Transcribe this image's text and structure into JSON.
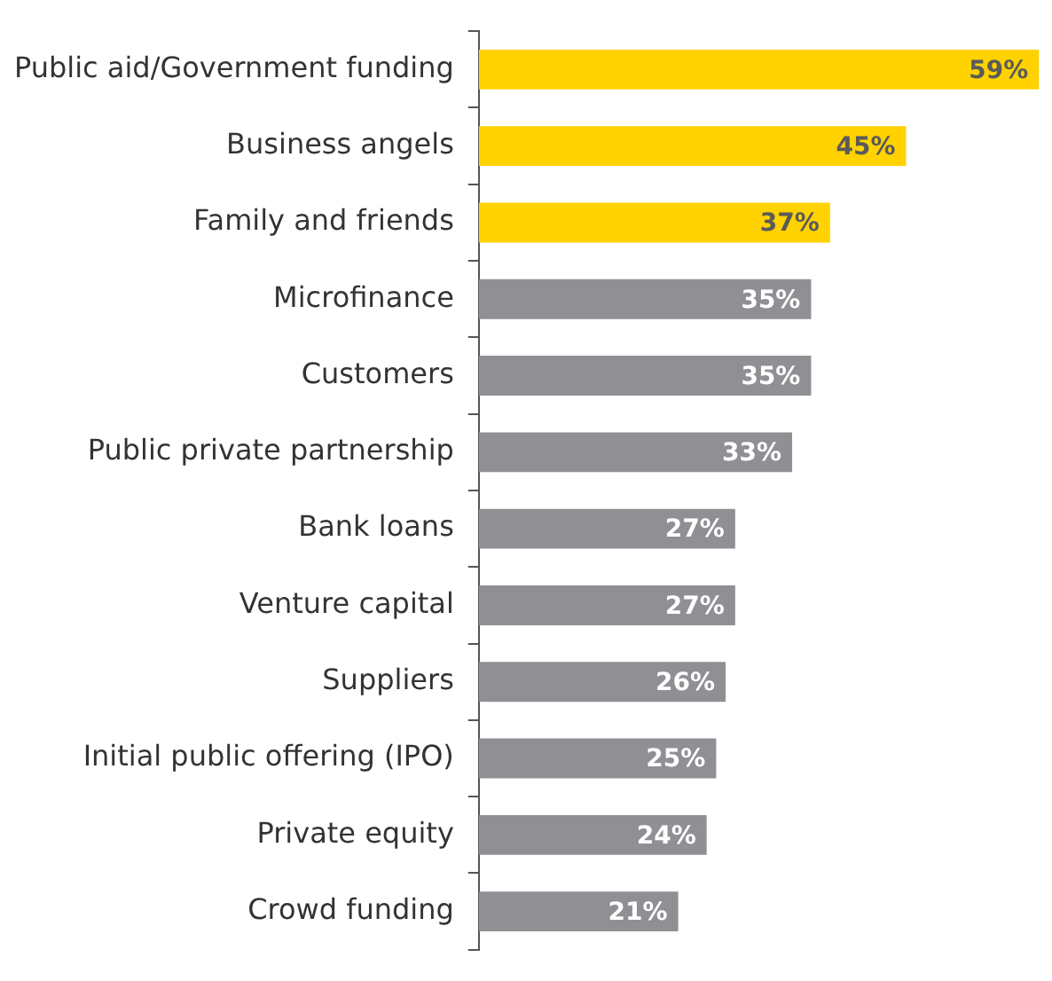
{
  "chart_data": {
    "type": "bar",
    "orientation": "horizontal",
    "categories": [
      "Public aid/Government funding",
      "Business angels",
      "Family and friends",
      "Microfinance",
      "Customers",
      "Public private partnership",
      "Bank loans",
      "Venture capital",
      "Suppliers",
      "Initial public offering (IPO)",
      "Private equity",
      "Crowd funding"
    ],
    "values": [
      59,
      45,
      37,
      35,
      35,
      33,
      27,
      27,
      26,
      25,
      24,
      21
    ],
    "colors": [
      "#ffd200",
      "#ffd200",
      "#ffd200",
      "#8f8f94",
      "#8f8f94",
      "#8f8f94",
      "#8f8f94",
      "#8f8f94",
      "#8f8f94",
      "#8f8f94",
      "#8f8f94",
      "#8f8f94"
    ],
    "value_labels": [
      "59%",
      "45%",
      "37%",
      "35%",
      "35%",
      "33%",
      "27%",
      "27%",
      "26%",
      "25%",
      "24%",
      "21%"
    ],
    "legend": false
  }
}
